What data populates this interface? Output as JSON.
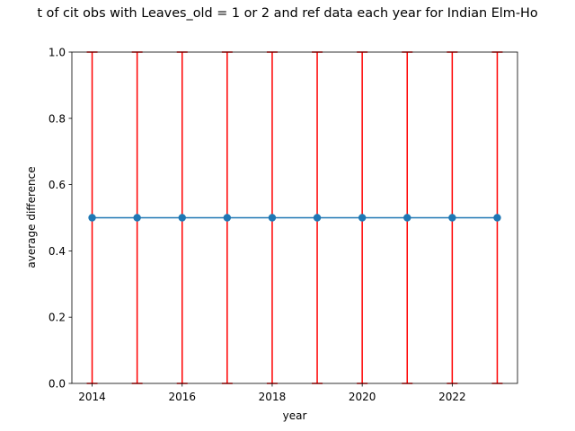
{
  "chart_data": {
    "type": "line",
    "title": "t of cit obs with Leaves_old = 1 or 2 and ref data each year for Indian Elm-Ho",
    "xlabel": "year",
    "ylabel": "average difference",
    "xlim": [
      2013.55,
      2023.45
    ],
    "ylim": [
      0.0,
      1.0
    ],
    "xticks": [
      2014,
      2016,
      2018,
      2020,
      2022
    ],
    "xtick_labels": [
      "2014",
      "2016",
      "2018",
      "2020",
      "2022"
    ],
    "yticks": [
      0.0,
      0.2,
      0.4,
      0.6,
      0.8,
      1.0
    ],
    "ytick_labels": [
      "0.0",
      "0.2",
      "0.4",
      "0.6",
      "0.8",
      "1.0"
    ],
    "grid": false,
    "series": [
      {
        "x": [
          2014,
          2015,
          2016,
          2017,
          2018,
          2019,
          2020,
          2021,
          2022,
          2023
        ],
        "y": [
          0.5,
          0.5,
          0.5,
          0.5,
          0.5,
          0.5,
          0.5,
          0.5,
          0.5,
          0.5
        ],
        "error_low": [
          0.0,
          0.0,
          0.0,
          0.0,
          0.0,
          0.0,
          0.0,
          0.0,
          0.0,
          0.0
        ],
        "error_high": [
          1.0,
          1.0,
          1.0,
          1.0,
          1.0,
          1.0,
          1.0,
          1.0,
          1.0,
          1.0
        ],
        "color": "#1f77b4",
        "error_color": "#ff0000",
        "marker": "o"
      }
    ]
  }
}
